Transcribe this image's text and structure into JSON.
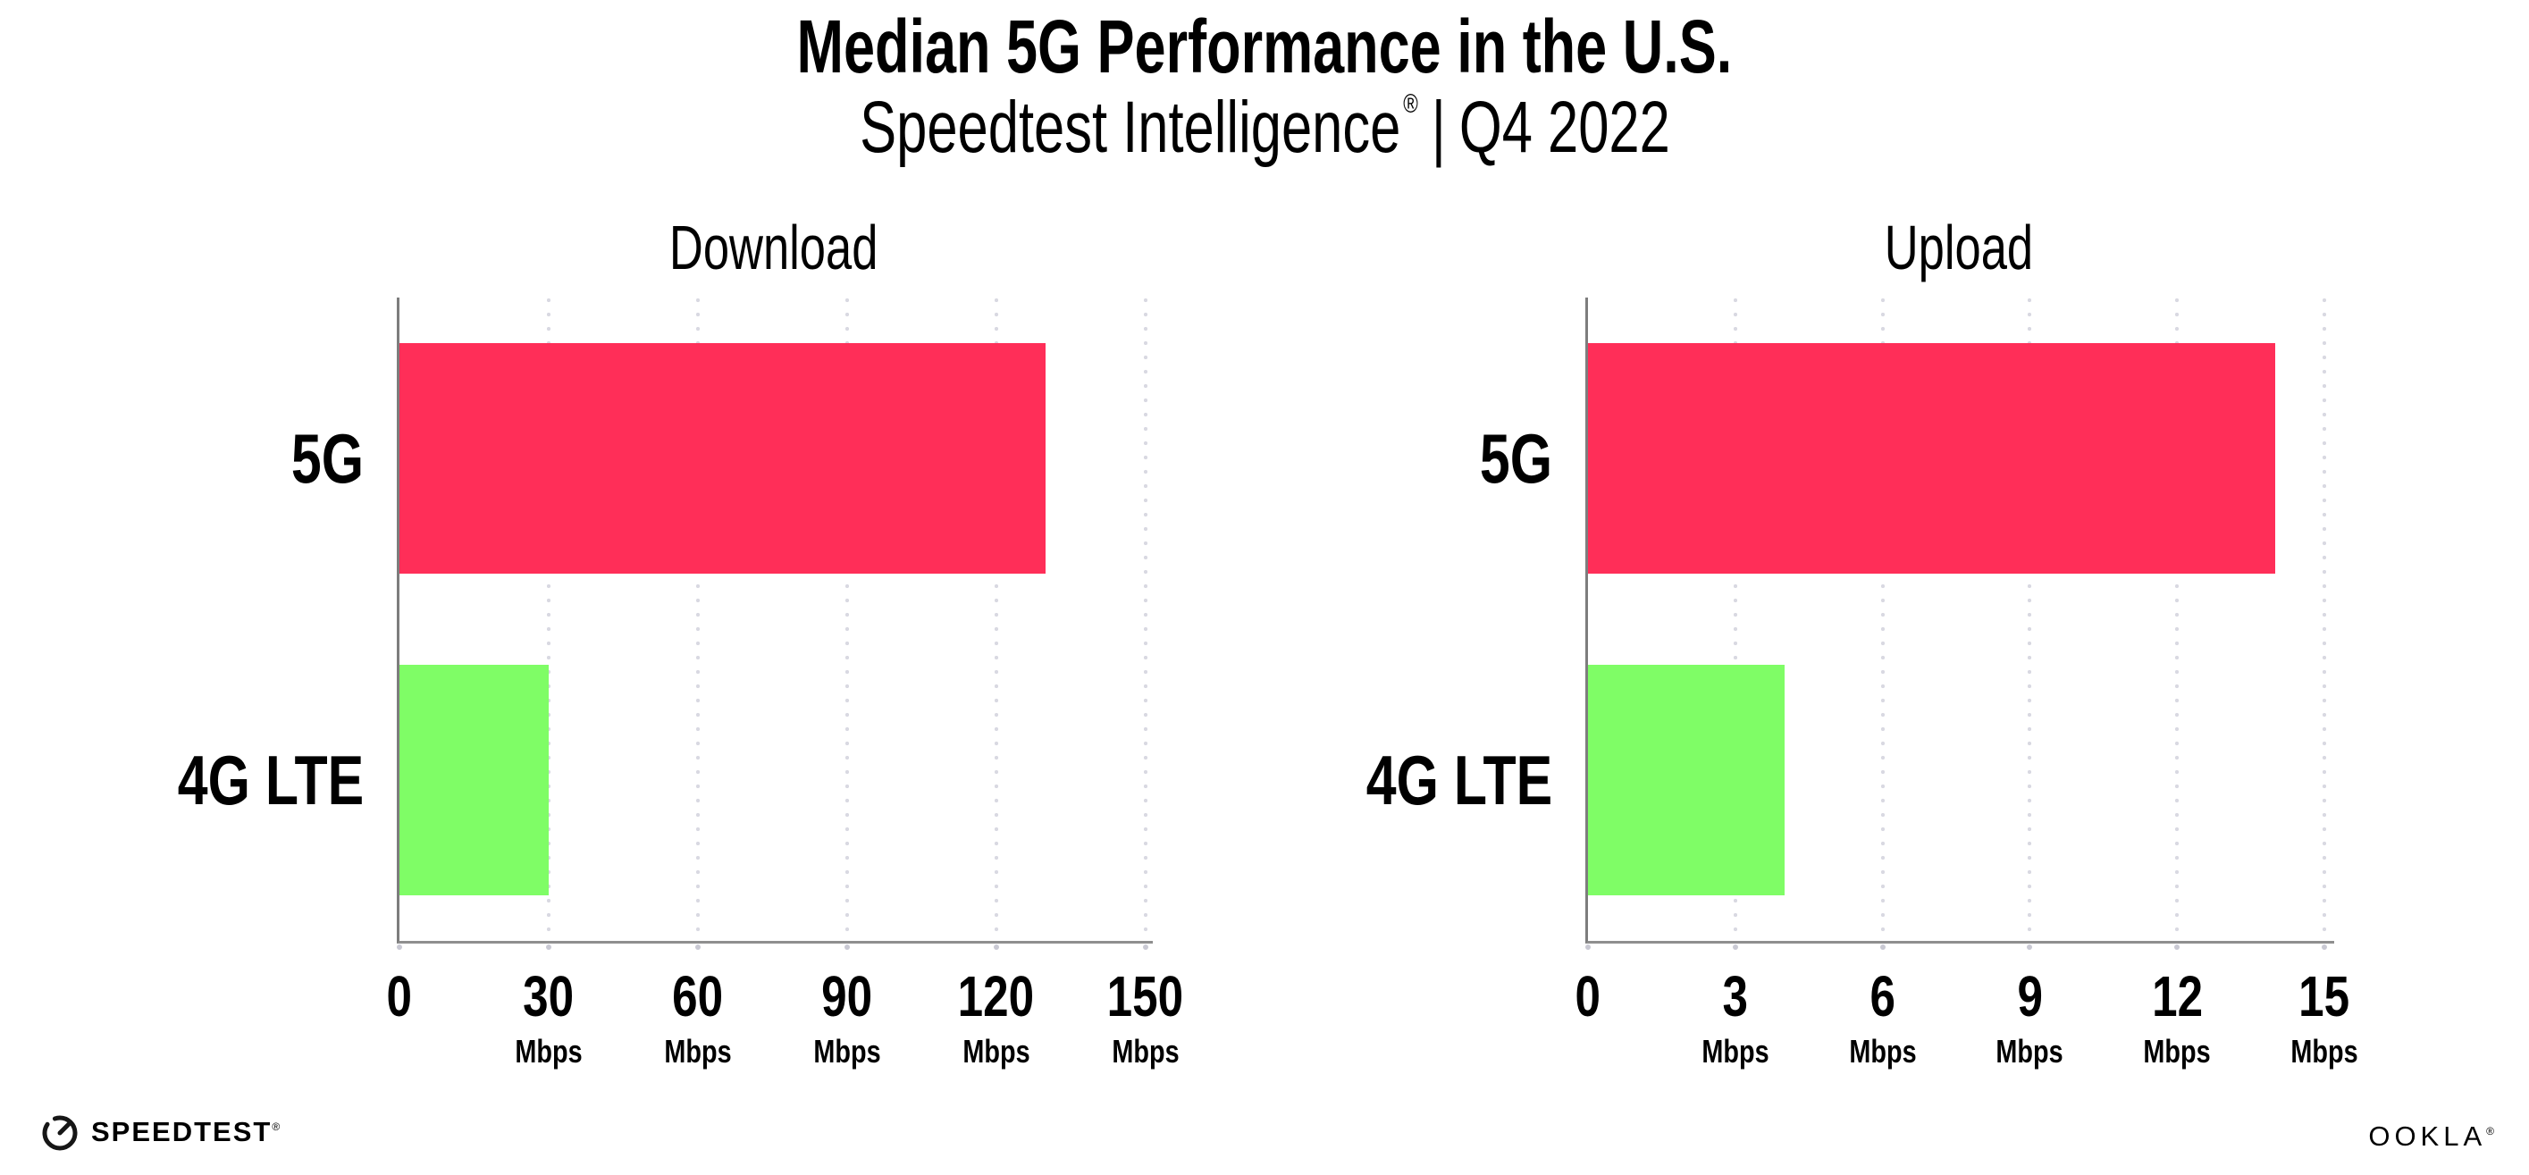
{
  "header": {
    "title": "Median 5G Performance in the U.S.",
    "subtitle_brand": "Speedtest Intelligence",
    "subtitle_registered": "®",
    "subtitle_separator": "|",
    "subtitle_period": "Q4 2022"
  },
  "chart_data": [
    {
      "type": "bar",
      "orientation": "horizontal",
      "title": "Download",
      "categories": [
        "5G",
        "4G LTE"
      ],
      "values": [
        130,
        30
      ],
      "unit": "Mbps",
      "xticks": [
        0,
        30,
        60,
        90,
        120,
        150
      ],
      "xlim": [
        0,
        151.5
      ],
      "bar_colors": [
        "#FF2E58",
        "#7FFD66"
      ],
      "grid": "vertical-dotted",
      "legend": "none"
    },
    {
      "type": "bar",
      "orientation": "horizontal",
      "title": "Upload",
      "categories": [
        "5G",
        "4G LTE"
      ],
      "values": [
        14,
        4
      ],
      "unit": "Mbps",
      "xticks": [
        0,
        3,
        6,
        9,
        12,
        15
      ],
      "xlim": [
        0,
        15.2
      ],
      "bar_colors": [
        "#FF2E58",
        "#7FFD66"
      ],
      "grid": "vertical-dotted",
      "legend": "none"
    }
  ],
  "footer": {
    "speedtest_wordmark": "SPEEDTEST",
    "speedtest_mark": "®",
    "ookla_wordmark": "OOKLA",
    "ookla_mark": "®"
  },
  "colors": {
    "bar_5g": "#FF2E58",
    "bar_4g_lte": "#7FFD66",
    "gridline": "#d9d9e2",
    "axis_line": "#8f8f8f",
    "text": "#000000",
    "background": "#ffffff"
  }
}
